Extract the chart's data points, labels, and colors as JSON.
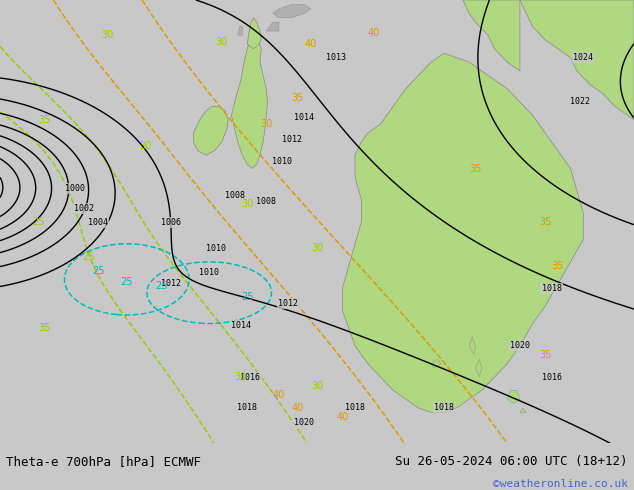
{
  "title_left": "Theta-e 700hPa [hPa] ECMWF",
  "title_right": "Su 26-05-2024 06:00 UTC (18+12)",
  "credit": "©weatheronline.co.uk",
  "bg_color": "#c8c8c8",
  "green_land_color": "#b0d880",
  "grey_land_color": "#b0b0b0",
  "fig_width": 6.34,
  "fig_height": 4.9,
  "dpi": 100,
  "bottom_bar_color": "#e0e0e0",
  "title_fontsize": 9,
  "credit_fontsize": 8,
  "credit_color": "#4466cc",
  "isobar_color": "#000000",
  "theta_green_color": "#99cc00",
  "theta_yellow_color": "#dd9900",
  "theta_cyan_color": "#00bbbb"
}
